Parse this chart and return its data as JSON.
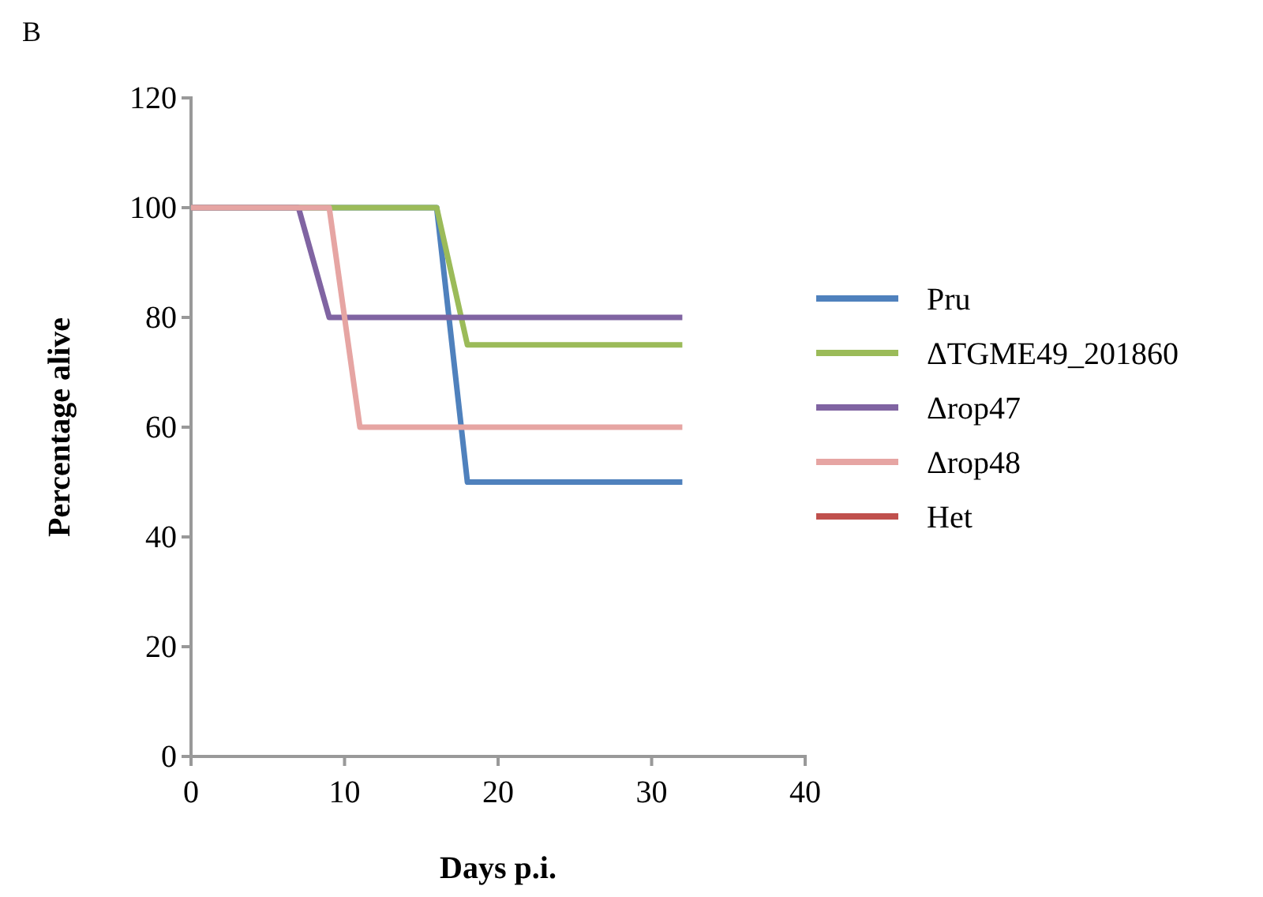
{
  "chart_data": {
    "type": "line",
    "xlabel": "Days p.i.",
    "ylabel": "Percentage alive",
    "annotations": [
      "B"
    ],
    "xlim": [
      0,
      40
    ],
    "xticks": [
      0,
      10,
      20,
      30,
      40
    ],
    "ylim": [
      0,
      120
    ],
    "yticks": [
      0,
      20,
      40,
      60,
      80,
      100,
      120
    ],
    "grid": false,
    "legend": "right",
    "marker": "none",
    "line_style": "solid",
    "series": [
      {
        "name": "Pru",
        "color": "#4f81bd",
        "x": [
          0,
          16,
          18,
          32
        ],
        "values": [
          100,
          100,
          50,
          50
        ]
      },
      {
        "name": "ΔTGME49_201860",
        "color": "#9bbb59",
        "x": [
          0,
          16,
          18,
          32
        ],
        "values": [
          100,
          100,
          75,
          75
        ]
      },
      {
        "name": "Δrop47",
        "color": "#8064a2",
        "x": [
          0,
          7,
          9,
          32
        ],
        "values": [
          100,
          100,
          80,
          80
        ]
      },
      {
        "name": "Δrop48",
        "color": "#e6a5a3",
        "x": [
          0,
          9,
          11,
          32
        ],
        "values": [
          100,
          100,
          60,
          60
        ]
      },
      {
        "name": "Het",
        "color": "#c0504d",
        "values": [
          null
        ]
      }
    ]
  }
}
